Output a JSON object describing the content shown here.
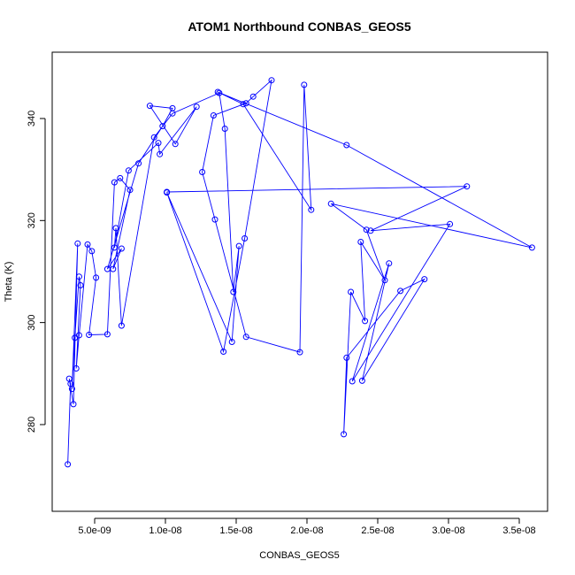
{
  "chart_data": {
    "type": "scatter",
    "title": "ATOM1 Northbound CONBAS_GEOS5",
    "xlabel": "CONBAS_GEOS5",
    "ylabel": "Theta (K)",
    "xlim": [
      2e-09,
      3.7e-08
    ],
    "ylim": [
      263,
      353
    ],
    "x_ticks": [
      5e-09,
      1e-08,
      1.5e-08,
      2e-08,
      2.5e-08,
      3e-08,
      3.5e-08
    ],
    "x_tick_labels": [
      "5.0e-09",
      "1.0e-08",
      "1.5e-08",
      "2.0e-08",
      "2.5e-08",
      "3.0e-08",
      "3.5e-08"
    ],
    "y_ticks": [
      280,
      300,
      320,
      340
    ],
    "y_tick_labels": [
      "280",
      "300",
      "320",
      "340"
    ],
    "grid": false,
    "legend": "none",
    "style": "points-connected",
    "color": "#0000ff",
    "series": [
      {
        "x": [
          3.1e-09,
          3.3e-09,
          3.2e-09,
          3.5e-09,
          3.8e-09,
          3.4e-09,
          3.6e-09,
          3.9e-09,
          4e-09,
          3.7e-09,
          3.9e-09,
          4.5e-09,
          4.8e-09,
          5.1e-09,
          4.6e-09,
          5.9e-09,
          6.4e-09,
          6.8e-09,
          7.5e-09,
          6.3e-09,
          6.9e-09,
          5.9e-09,
          8.1e-09,
          9.8e-09,
          1.05e-08,
          8.9e-09,
          1.07e-08,
          1.22e-08,
          9.6e-09,
          9.5e-09,
          7.4e-09,
          6.4e-09,
          6.5e-09,
          6.9e-09,
          9.2e-09,
          1.05e-08,
          1.38e-08,
          1.42e-08,
          1.48e-08,
          1.52e-08,
          1.47e-08,
          1.01e-08,
          1.41e-08,
          1.56e-08,
          1.75e-08,
          1.62e-08,
          1.57e-08,
          1.34e-08,
          1.26e-08,
          1.35e-08,
          1.57e-08,
          1.95e-08,
          1.98e-08,
          2.03e-08,
          1.55e-08,
          1.37e-08,
          2.28e-08,
          3.59e-08,
          2.17e-08,
          2.42e-08,
          2.55e-08,
          2.38e-08,
          2.41e-08,
          2.31e-08,
          2.26e-08,
          2.28e-08,
          2.66e-08,
          2.83e-08,
          2.39e-08,
          2.58e-08,
          2.32e-08,
          3.01e-08,
          2.45e-08,
          3.13e-08,
          1.01e-08
        ],
        "y": [
          272.2,
          288.0,
          289.0,
          284.0,
          315.5,
          287.0,
          297.0,
          309.0,
          307.3,
          291.0,
          297.5,
          315.3,
          314.0,
          308.8,
          297.6,
          297.7,
          327.5,
          328.3,
          326.0,
          310.5,
          314.5,
          310.5,
          331.2,
          338.5,
          342.0,
          342.5,
          335.0,
          342.3,
          333.0,
          335.2,
          329.8,
          314.7,
          318.5,
          299.4,
          336.3,
          341.0,
          345.0,
          338.0,
          306.0,
          315.0,
          296.2,
          325.5,
          294.3,
          316.5,
          347.5,
          344.3,
          343.0,
          340.6,
          329.5,
          320.2,
          297.2,
          294.2,
          346.6,
          322.1,
          342.8,
          345.2,
          334.8,
          314.7,
          323.3,
          318.2,
          308.3,
          315.8,
          300.3,
          306.0,
          278.1,
          293.1,
          306.2,
          308.5,
          288.6,
          311.6,
          288.5,
          319.3,
          318.0,
          326.7,
          325.6
        ]
      }
    ]
  }
}
